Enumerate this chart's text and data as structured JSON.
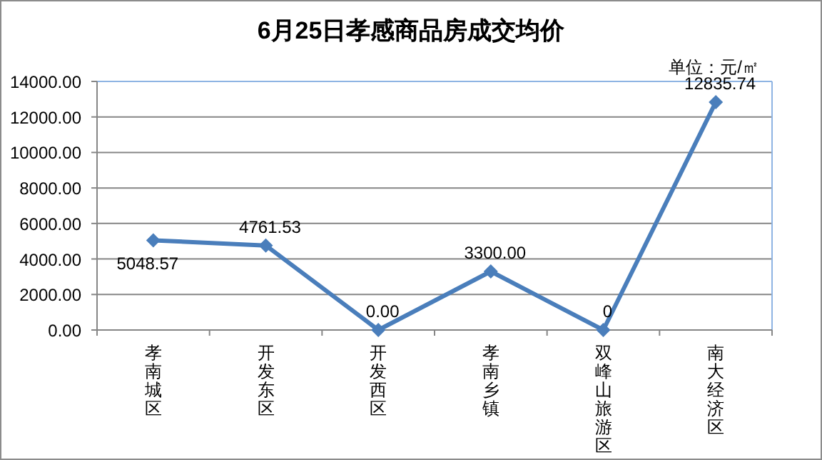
{
  "chart_data": {
    "type": "line",
    "title": "6月25日孝感商品房成交均价",
    "annotations": [
      "单位：元/㎡"
    ],
    "categories": [
      "孝南城区",
      "开发东区",
      "开发西区",
      "孝南乡镇",
      "双峰山旅游区",
      "南大经济区"
    ],
    "series": [
      {
        "color": "#4a7ebb",
        "values": [
          5048.57,
          4761.53,
          0,
          3300,
          0,
          12835.74
        ],
        "value_labels": [
          "5048.57",
          "4761.53",
          "0.00",
          "3300.00",
          "0",
          "12835.74"
        ]
      }
    ],
    "ylim": [
      0,
      14000
    ],
    "yticks": [
      {
        "value": 0,
        "label": "0.00"
      },
      {
        "value": 2000,
        "label": "2000.00"
      },
      {
        "value": 4000,
        "label": "4000.00"
      },
      {
        "value": 6000,
        "label": "6000.00"
      },
      {
        "value": 8000,
        "label": "8000.00"
      },
      {
        "value": 10000,
        "label": "10000.00"
      },
      {
        "value": 12000,
        "label": "12000.00"
      },
      {
        "value": 14000,
        "label": "14000.00"
      }
    ],
    "grid": "y",
    "marker": "diamond",
    "line_style": "solid"
  }
}
